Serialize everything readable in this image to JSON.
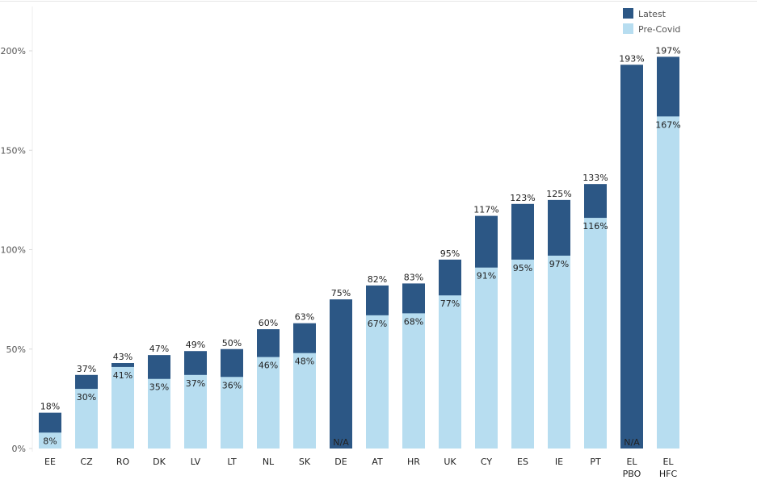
{
  "chart_data": {
    "type": "bar",
    "stacked": "overlay",
    "categories": [
      [
        "EE"
      ],
      [
        "CZ"
      ],
      [
        "RO"
      ],
      [
        "DK"
      ],
      [
        "LV"
      ],
      [
        "LT"
      ],
      [
        "NL"
      ],
      [
        "SK"
      ],
      [
        "DE"
      ],
      [
        "AT"
      ],
      [
        "HR"
      ],
      [
        "UK"
      ],
      [
        "CY"
      ],
      [
        "ES"
      ],
      [
        "IE"
      ],
      [
        "PT"
      ],
      [
        "EL",
        "PBO"
      ],
      [
        "EL",
        "HFC"
      ]
    ],
    "series": [
      {
        "name": "Latest",
        "color": "#2c5785",
        "values": [
          18,
          37,
          43,
          47,
          49,
          50,
          60,
          63,
          75,
          82,
          83,
          95,
          117,
          123,
          125,
          133,
          193,
          197
        ],
        "labels": [
          "18%",
          "37%",
          "43%",
          "47%",
          "49%",
          "50%",
          "60%",
          "63%",
          "75%",
          "82%",
          "83%",
          "95%",
          "117%",
          "123%",
          "125%",
          "133%",
          "193%",
          "197%"
        ]
      },
      {
        "name": "Pre-Covid",
        "color": "#b7ddf0",
        "values": [
          8,
          30,
          41,
          35,
          37,
          36,
          46,
          48,
          null,
          67,
          68,
          77,
          91,
          95,
          97,
          116,
          null,
          167
        ],
        "labels": [
          "8%",
          "30%",
          "41%",
          "35%",
          "37%",
          "36%",
          "46%",
          "48%",
          "N/A",
          "67%",
          "68%",
          "77%",
          "91%",
          "95%",
          "97%",
          "116%",
          "N/A",
          "167%"
        ]
      }
    ],
    "ylim": [
      0,
      200
    ],
    "yticks": [
      0,
      50,
      100,
      150,
      200
    ],
    "ytick_labels": [
      "0%",
      "50%",
      "100%",
      "150%",
      "200%"
    ],
    "legend": {
      "position": "top-right",
      "entries": [
        "Latest",
        "Pre-Covid"
      ]
    },
    "grid": false,
    "title": "",
    "xlabel": "",
    "ylabel": ""
  }
}
